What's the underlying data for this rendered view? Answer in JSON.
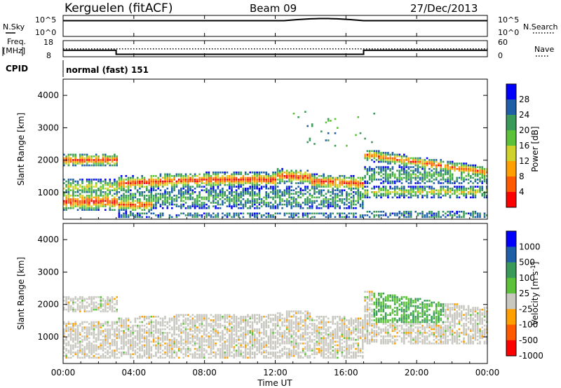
{
  "header": {
    "station": "Kerguelen (fitACF)",
    "beam": "Beam 09",
    "date": "27/Dec/2013"
  },
  "side_labels": {
    "nsky": "N.Sky",
    "freq_line1": "Freq.",
    "freq_line2": "[MHz]",
    "cpid": "CPID",
    "nsearch": "N.Search",
    "nave": "Nave"
  },
  "cpid_value": "normal (fast) 151",
  "axes": {
    "slant_range_label": "Slant Range [km]",
    "time_label": "Time UT",
    "power_label": "Power [dB]",
    "velocity_label_text": "Velocity [m s",
    "velocity_label_exp": "-1",
    "velocity_label_close": "]"
  },
  "colors": {
    "power_scale": [
      "#0000ff",
      "#1f5fa8",
      "#3a9a5a",
      "#5cc23a",
      "#cfd22a",
      "#ffa000",
      "#ff5a00",
      "#ff0000"
    ],
    "velocity_scale": [
      "#0000ff",
      "#1f5fa8",
      "#3a9a5a",
      "#5cc23a",
      "#c8c8c0",
      "#ffa000",
      "#ff5a00",
      "#ff0000"
    ]
  },
  "chart_data": [
    {
      "type": "line",
      "name": "nsky-nsearch",
      "y_ticks": [
        "10^5",
        "10^0"
      ],
      "y_ticks_right": [
        "10^5",
        "10^0"
      ]
    },
    {
      "type": "line",
      "name": "freq-nave",
      "y_ticks": [
        "18",
        "8"
      ],
      "y_ticks_right": [
        "60",
        "0"
      ],
      "freq_series": {
        "x": [
          0.0,
          3.0,
          3.0,
          17.0,
          17.0,
          24.0
        ],
        "y": [
          12.0,
          12.0,
          9.5,
          9.5,
          12.0,
          12.0
        ]
      },
      "nave_level": 12.0
    },
    {
      "type": "heatmap",
      "name": "power",
      "ylabel": "Slant Range [km]",
      "ylim": [
        180,
        4500
      ],
      "y_ticks": [
        "4000",
        "3000",
        "2000",
        "1000"
      ],
      "colorbar_ticks": [
        "28",
        "24",
        "20",
        "16",
        "12",
        "8",
        "4"
      ],
      "colorbar_range": [
        0,
        32
      ]
    },
    {
      "type": "heatmap",
      "name": "velocity",
      "ylabel": "Slant Range [km]",
      "ylim": [
        180,
        4500
      ],
      "y_ticks": [
        "4000",
        "3000",
        "2000",
        "1000"
      ],
      "colorbar_ticks": [
        "1000",
        "500",
        "100",
        "25",
        "-25",
        "-100",
        "-500",
        "-1000"
      ]
    }
  ],
  "x_ticks": [
    "00:00",
    "04:00",
    "08:00",
    "12:00",
    "16:00",
    "20:00",
    "00:00"
  ],
  "x_range_hours": [
    0,
    24
  ]
}
